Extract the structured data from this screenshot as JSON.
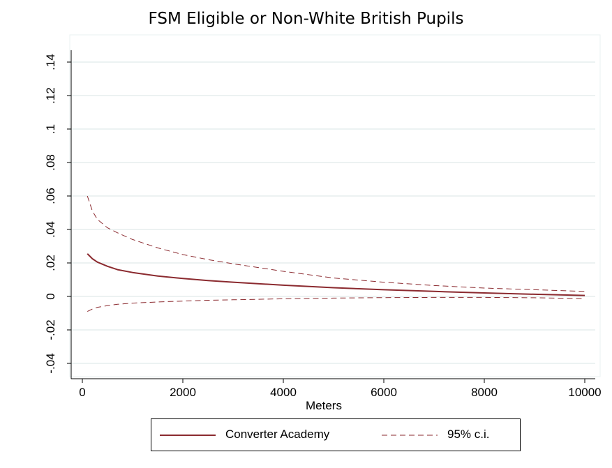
{
  "title": "FSM Eligible or Non-White British Pupils",
  "chart_data": {
    "type": "line",
    "title": "FSM Eligible or Non-White British Pupils",
    "xlabel": "Meters",
    "ylabel": "",
    "xlim": [
      0,
      10000
    ],
    "ylim": [
      -0.04,
      0.14
    ],
    "xticks": [
      0,
      2000,
      4000,
      6000,
      8000,
      10000
    ],
    "xtick_labels": [
      "0",
      "2000",
      "4000",
      "6000",
      "8000",
      "10000"
    ],
    "yticks": [
      -0.04,
      -0.02,
      0,
      0.02,
      0.04,
      0.06,
      0.08,
      0.1,
      0.12,
      0.14
    ],
    "ytick_labels": [
      "-.04",
      "-.02",
      "0",
      ".02",
      ".04",
      ".06",
      ".08",
      ".1",
      ".12",
      ".14"
    ],
    "grid": true,
    "legend_position": "bottom",
    "x": [
      100,
      200,
      300,
      500,
      700,
      1000,
      1500,
      2000,
      2500,
      3000,
      4000,
      5000,
      6000,
      7000,
      8000,
      9000,
      10000
    ],
    "series": [
      {
        "name": "Converter Academy",
        "style": "solid",
        "color": "#8b2a2f",
        "values": [
          0.0255,
          0.0225,
          0.0205,
          0.018,
          0.016,
          0.0143,
          0.0122,
          0.0107,
          0.0095,
          0.0085,
          0.0067,
          0.0052,
          0.004,
          0.003,
          0.0021,
          0.0013,
          0.0006
        ]
      },
      {
        "name": "95% c.i.",
        "style": "dashed",
        "color": "#8b2a2f",
        "values": [
          0.06,
          0.051,
          0.046,
          0.041,
          0.038,
          0.034,
          0.029,
          0.025,
          0.022,
          0.0195,
          0.015,
          0.011,
          0.0085,
          0.0065,
          0.005,
          0.004,
          0.003
        ]
      },
      {
        "name": "",
        "style": "dashed",
        "color": "#8b2a2f",
        "values": [
          -0.009,
          -0.0075,
          -0.0065,
          -0.0055,
          -0.0047,
          -0.004,
          -0.0033,
          -0.0028,
          -0.0023,
          -0.002,
          -0.0014,
          -0.001,
          -0.0007,
          -0.0006,
          -0.0006,
          -0.0008,
          -0.0013
        ]
      }
    ]
  }
}
